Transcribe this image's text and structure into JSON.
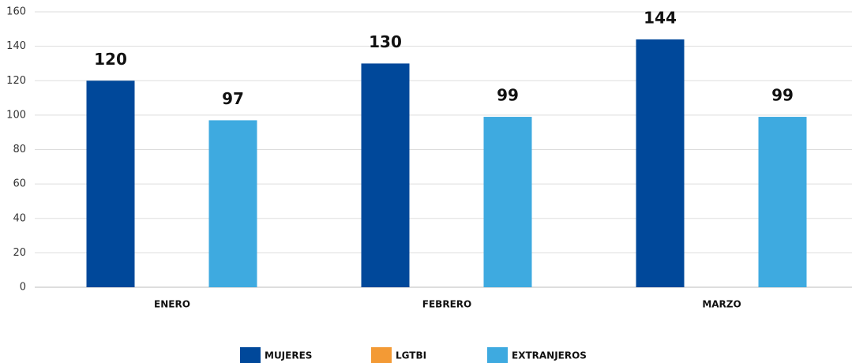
{
  "chart_data": {
    "type": "bar",
    "categories": [
      "ENERO",
      "FEBRERO",
      "MARZO"
    ],
    "series": [
      {
        "name": "MUJERES",
        "color": "#00489a",
        "values": [
          120,
          130,
          144
        ]
      },
      {
        "name": "LGTBI",
        "color": "#f39a35",
        "values": [
          null,
          null,
          null
        ]
      },
      {
        "name": "EXTRANJEROS",
        "color": "#3eaae0",
        "values": [
          97,
          99,
          99
        ]
      }
    ],
    "ylim": [
      0,
      160
    ],
    "yticks": [
      0,
      20,
      40,
      60,
      80,
      100,
      120,
      140,
      160
    ],
    "grid": true,
    "legend": "bottom"
  }
}
